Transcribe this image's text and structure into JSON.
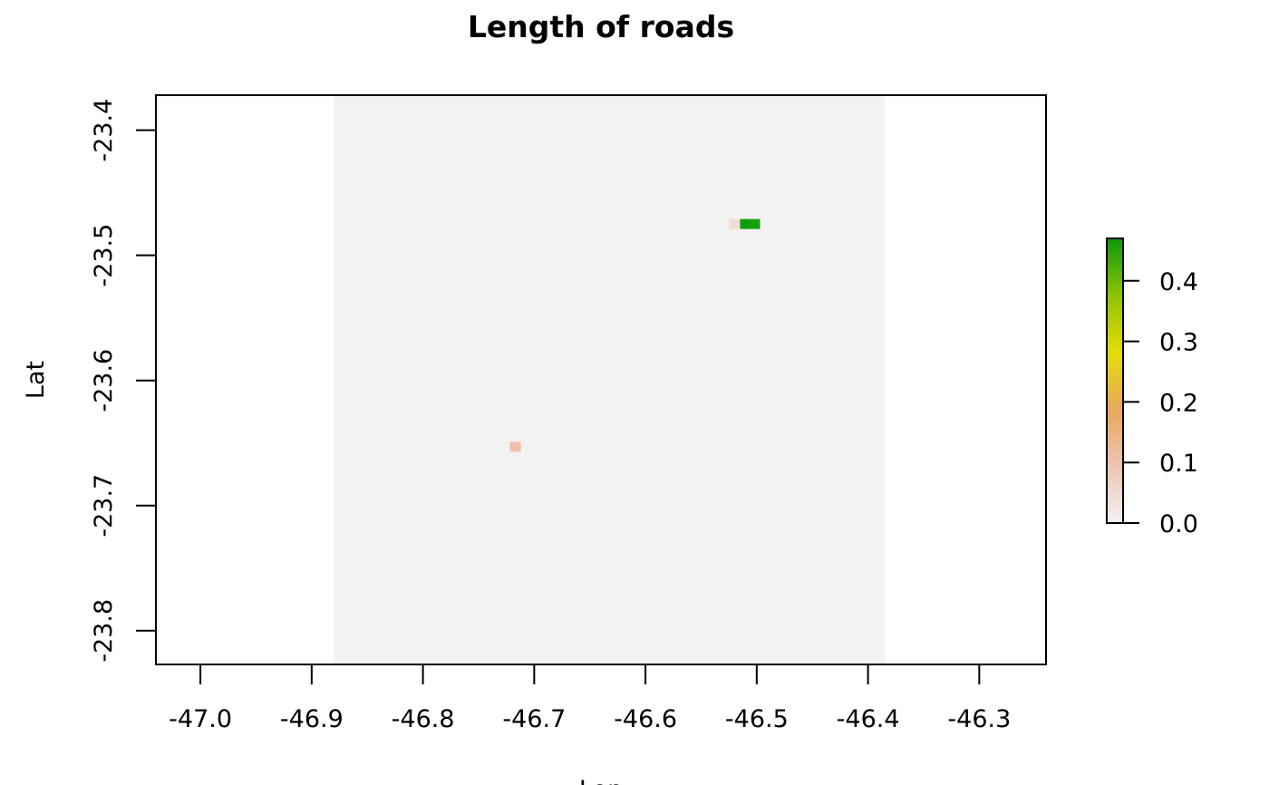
{
  "chart_data": {
    "type": "heatmap",
    "title": "Length of roads",
    "xlabel": "Lon",
    "ylabel": "Lat",
    "xlim": [
      -47.04,
      -46.24
    ],
    "ylim": [
      -23.827,
      -23.372
    ],
    "x_ticks": [
      -47.0,
      -46.9,
      -46.8,
      -46.7,
      -46.6,
      -46.5,
      -46.4,
      -46.3
    ],
    "x_tick_labels": [
      "-47.0",
      "-46.9",
      "-46.8",
      "-46.7",
      "-46.6",
      "-46.5",
      "-46.4",
      "-46.3"
    ],
    "y_ticks": [
      -23.4,
      -23.5,
      -23.6,
      -23.7,
      -23.8
    ],
    "y_tick_labels": [
      "-23.4",
      "-23.5",
      "-23.6",
      "-23.7",
      "-23.8"
    ],
    "raster_extent": {
      "lon": [
        -46.88,
        -46.385
      ],
      "lat": [
        -23.827,
        -23.372
      ]
    },
    "background_color": "#f2f2f2",
    "cells": [
      {
        "lon": [
          -46.525,
          -46.515
        ],
        "lat": [
          -23.479,
          -23.471
        ],
        "value": 0.03,
        "color": "#f0dcd6"
      },
      {
        "lon": [
          -46.515,
          -46.506
        ],
        "lat": [
          -23.479,
          -23.471
        ],
        "value": 0.47,
        "color": "#0d9c0d"
      },
      {
        "lon": [
          -46.506,
          -46.497
        ],
        "lat": [
          -23.479,
          -23.471
        ],
        "value": 0.45,
        "color": "#16a20e"
      },
      {
        "lon": [
          -46.722,
          -46.712
        ],
        "lat": [
          -23.657,
          -23.649
        ],
        "value": 0.07,
        "color": "#efbfae"
      }
    ],
    "legend": {
      "position": "right",
      "range": [
        0,
        0.47
      ],
      "ticks": [
        0.0,
        0.1,
        0.2,
        0.3,
        0.4
      ],
      "tick_labels": [
        "0.0",
        "0.1",
        "0.2",
        "0.3",
        "0.4"
      ],
      "colors": [
        "#f2f2f2",
        "#efc4b5",
        "#e8a85a",
        "#e5dc0a",
        "#8fc208",
        "#0a9a0a"
      ]
    }
  }
}
